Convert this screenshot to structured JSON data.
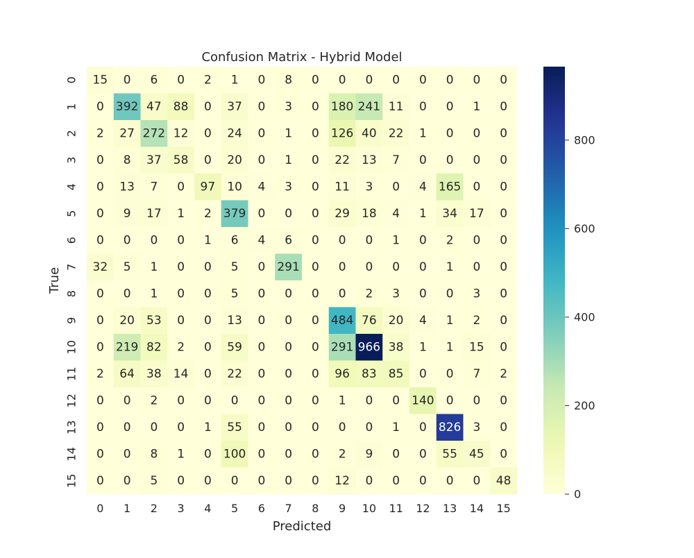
{
  "chart_data": {
    "type": "heatmap",
    "title": "Confusion Matrix - Hybrid Model",
    "xlabel": "Predicted",
    "ylabel": "True",
    "x_categories": [
      "0",
      "1",
      "2",
      "3",
      "4",
      "5",
      "6",
      "7",
      "8",
      "9",
      "10",
      "11",
      "12",
      "13",
      "14",
      "15"
    ],
    "y_categories": [
      "0",
      "1",
      "2",
      "3",
      "4",
      "5",
      "6",
      "7",
      "8",
      "9",
      "10",
      "11",
      "12",
      "13",
      "14",
      "15"
    ],
    "values": [
      [
        15,
        0,
        6,
        0,
        2,
        1,
        0,
        8,
        0,
        0,
        0,
        0,
        0,
        0,
        0,
        0
      ],
      [
        0,
        392,
        47,
        88,
        0,
        37,
        0,
        3,
        0,
        180,
        241,
        11,
        0,
        0,
        1,
        0
      ],
      [
        2,
        27,
        272,
        12,
        0,
        24,
        0,
        1,
        0,
        126,
        40,
        22,
        1,
        0,
        0,
        0
      ],
      [
        0,
        8,
        37,
        58,
        0,
        20,
        0,
        1,
        0,
        22,
        13,
        7,
        0,
        0,
        0,
        0
      ],
      [
        0,
        13,
        7,
        0,
        97,
        10,
        4,
        3,
        0,
        11,
        3,
        0,
        4,
        165,
        0,
        0
      ],
      [
        0,
        9,
        17,
        1,
        2,
        379,
        0,
        0,
        0,
        29,
        18,
        4,
        1,
        34,
        17,
        0
      ],
      [
        0,
        0,
        0,
        0,
        1,
        6,
        4,
        6,
        0,
        0,
        0,
        1,
        0,
        2,
        0,
        0
      ],
      [
        32,
        5,
        1,
        0,
        0,
        5,
        0,
        291,
        0,
        0,
        0,
        0,
        0,
        1,
        0,
        0
      ],
      [
        0,
        0,
        1,
        0,
        0,
        5,
        0,
        0,
        0,
        0,
        2,
        3,
        0,
        0,
        3,
        0
      ],
      [
        0,
        20,
        53,
        0,
        0,
        13,
        0,
        0,
        0,
        484,
        76,
        20,
        4,
        1,
        2,
        0
      ],
      [
        0,
        219,
        82,
        2,
        0,
        59,
        0,
        0,
        0,
        291,
        966,
        38,
        1,
        1,
        15,
        0
      ],
      [
        2,
        64,
        38,
        14,
        0,
        22,
        0,
        0,
        0,
        96,
        83,
        85,
        0,
        0,
        7,
        2
      ],
      [
        0,
        0,
        2,
        0,
        0,
        0,
        0,
        0,
        0,
        1,
        0,
        0,
        140,
        0,
        0,
        0
      ],
      [
        0,
        0,
        0,
        0,
        1,
        55,
        0,
        0,
        0,
        0,
        0,
        1,
        0,
        826,
        3,
        0
      ],
      [
        0,
        0,
        8,
        1,
        0,
        100,
        0,
        0,
        0,
        2,
        9,
        0,
        0,
        55,
        45,
        0
      ],
      [
        0,
        0,
        5,
        0,
        0,
        0,
        0,
        0,
        0,
        12,
        0,
        0,
        0,
        0,
        0,
        48
      ]
    ],
    "color_range": [
      0,
      966
    ],
    "colorbar_ticks": [
      0,
      200,
      400,
      600,
      800
    ],
    "colormap": "YlGnBu",
    "grid": false
  }
}
